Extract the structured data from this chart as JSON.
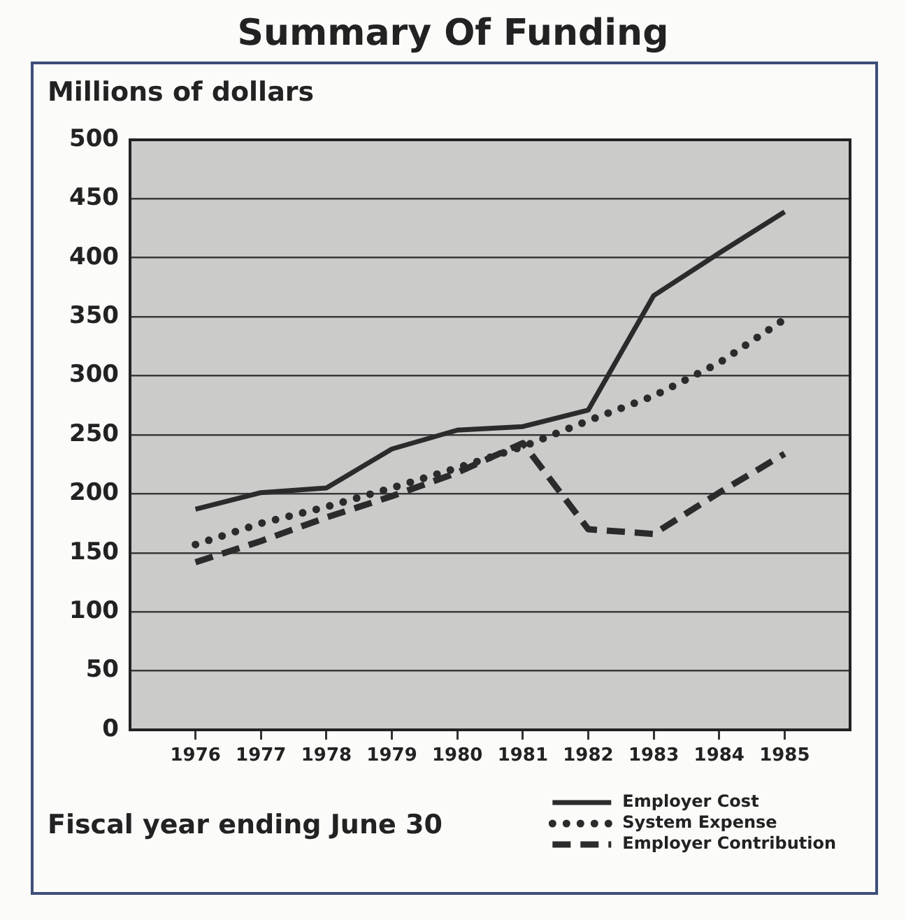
{
  "chart_data": {
    "type": "line",
    "title": "Summary Of Funding",
    "ylabel": "Millions of dollars",
    "xlabel": "Fiscal year ending June 30",
    "x": [
      1976,
      1977,
      1978,
      1979,
      1980,
      1981,
      1982,
      1983,
      1984,
      1985
    ],
    "series": [
      {
        "name": "Employer Cost",
        "color": "#2b2b2b",
        "line_style": "solid",
        "values": [
          187,
          201,
          205,
          238,
          254,
          257,
          271,
          368,
          404,
          439
        ]
      },
      {
        "name": "System Expense",
        "color": "#2b2b2b",
        "line_style": "dotted",
        "values": [
          157,
          175,
          189,
          205,
          222,
          240,
          262,
          283,
          311,
          348
        ]
      },
      {
        "name": "Employer Contribution",
        "color": "#2b2b2b",
        "line_style": "dashed",
        "values": [
          142,
          160,
          180,
          198,
          218,
          243,
          170,
          166,
          201,
          234
        ]
      }
    ],
    "xlim": [
      1975,
      1986
    ],
    "xticks": [
      1976,
      1977,
      1978,
      1979,
      1980,
      1981,
      1982,
      1983,
      1984,
      1985
    ],
    "ylim": [
      0,
      500
    ],
    "yticks": [
      0,
      50,
      100,
      150,
      200,
      250,
      300,
      350,
      400,
      450,
      500
    ],
    "grid": "y",
    "legend": "bottom right"
  }
}
